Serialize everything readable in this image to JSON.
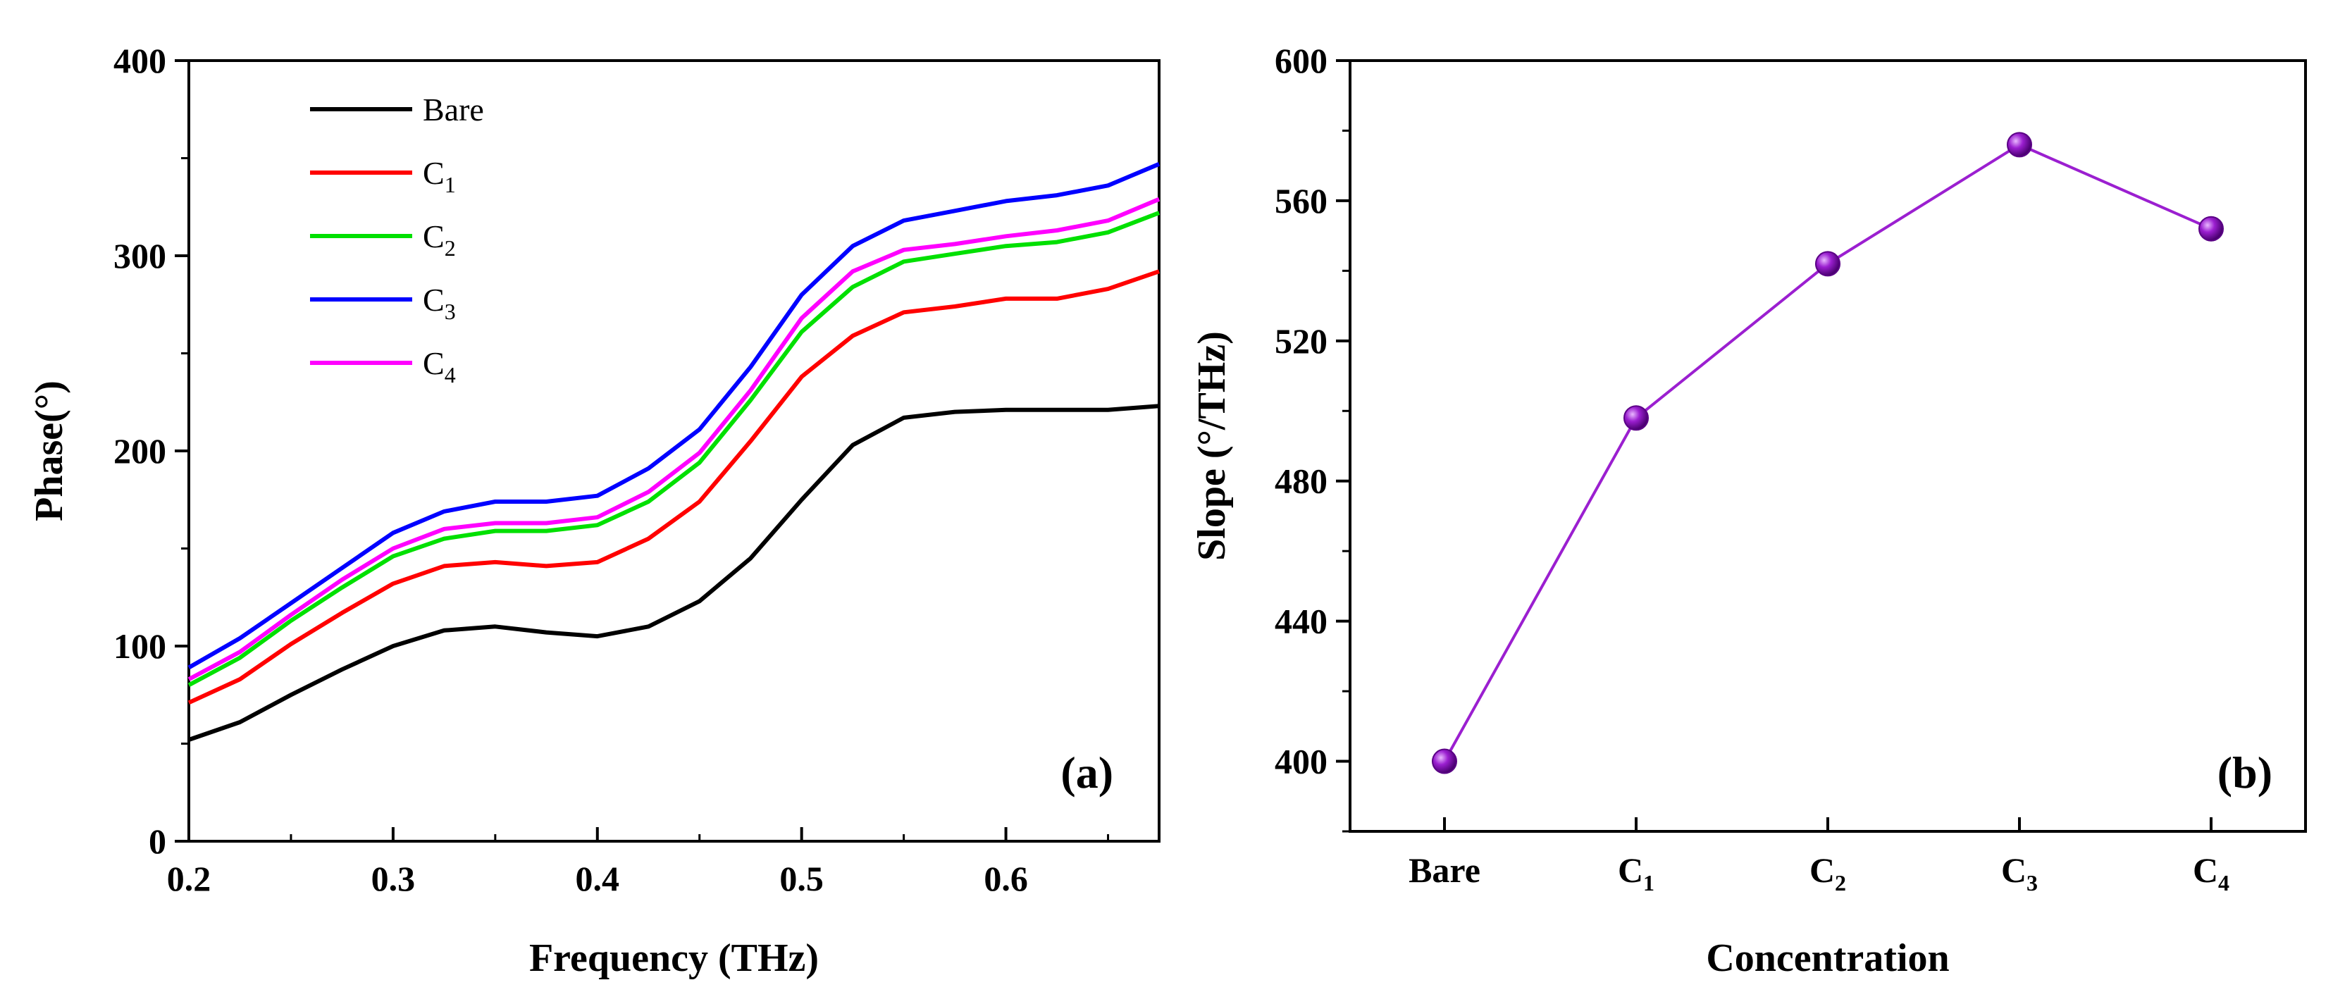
{
  "chart_data": [
    {
      "type": "line",
      "panel_label": "(a)",
      "xlabel": "Frequency (THz)",
      "ylabel": "Phase(°)",
      "xlim": [
        0.2,
        0.675
      ],
      "ylim": [
        0,
        400
      ],
      "xticks": [
        "0.2",
        "0.3",
        "0.4",
        "0.5",
        "0.6"
      ],
      "yticks": [
        "0",
        "100",
        "200",
        "300",
        "400"
      ],
      "legend_position": "top-left",
      "x": [
        0.2,
        0.225,
        0.25,
        0.275,
        0.3,
        0.325,
        0.35,
        0.375,
        0.4,
        0.425,
        0.45,
        0.475,
        0.5,
        0.525,
        0.55,
        0.575,
        0.6,
        0.625,
        0.65,
        0.675
      ],
      "series": [
        {
          "name": "Bare",
          "base": "Bare",
          "sub": "",
          "color": "#000000",
          "values": [
            52,
            61,
            75,
            88,
            100,
            108,
            110,
            107,
            105,
            110,
            123,
            145,
            175,
            203,
            217,
            220,
            221,
            221,
            221,
            223
          ]
        },
        {
          "name": "C1",
          "base": "C",
          "sub": "1",
          "color": "#ff0000",
          "values": [
            71,
            83,
            101,
            117,
            132,
            141,
            143,
            141,
            143,
            155,
            174,
            205,
            238,
            259,
            271,
            274,
            278,
            278,
            283,
            292
          ]
        },
        {
          "name": "C2",
          "base": "C",
          "sub": "2",
          "color": "#00e000",
          "values": [
            80,
            94,
            113,
            130,
            146,
            155,
            159,
            159,
            162,
            174,
            194,
            226,
            261,
            284,
            297,
            301,
            305,
            307,
            312,
            322
          ]
        },
        {
          "name": "C3",
          "base": "C",
          "sub": "3",
          "color": "#0000ff",
          "values": [
            89,
            104,
            122,
            140,
            158,
            169,
            174,
            174,
            177,
            191,
            211,
            243,
            280,
            305,
            318,
            323,
            328,
            331,
            336,
            347
          ]
        },
        {
          "name": "C4",
          "base": "C",
          "sub": "4",
          "color": "#ff00ff",
          "values": [
            83,
            97,
            116,
            134,
            150,
            160,
            163,
            163,
            166,
            179,
            199,
            231,
            268,
            292,
            303,
            306,
            310,
            313,
            318,
            329
          ]
        }
      ]
    },
    {
      "type": "line",
      "panel_label": "(b)",
      "xlabel": "Concentration",
      "ylabel": "Slope (°/THz)",
      "ylim": [
        380,
        600
      ],
      "yticks": [
        "400",
        "440",
        "480",
        "520",
        "560",
        "600"
      ],
      "categories": [
        {
          "base": "Bare",
          "sub": ""
        },
        {
          "base": "C",
          "sub": "1"
        },
        {
          "base": "C",
          "sub": "2"
        },
        {
          "base": "C",
          "sub": "3"
        },
        {
          "base": "C",
          "sub": "4"
        }
      ],
      "values": [
        400,
        498,
        542,
        576,
        552
      ],
      "color": "#9b1fd0"
    }
  ]
}
